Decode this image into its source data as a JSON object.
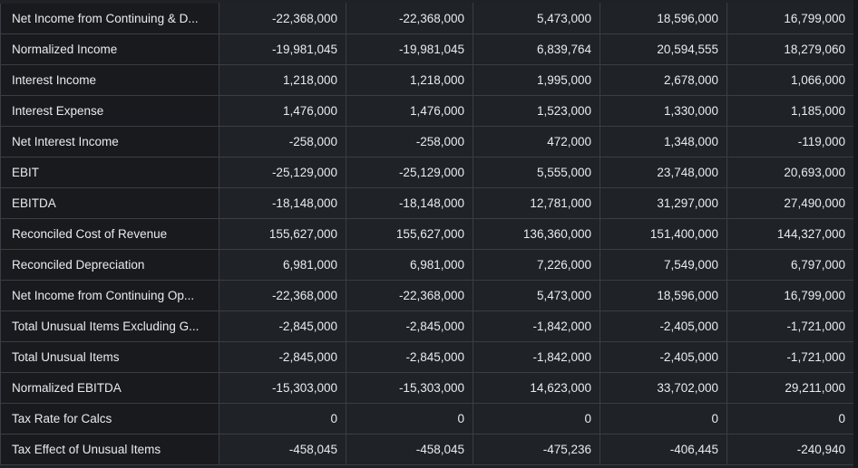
{
  "table": {
    "rows": [
      {
        "label": "Net Income from Continuing & D...",
        "values": [
          "-22,368,000",
          "-22,368,000",
          "5,473,000",
          "18,596,000",
          "16,799,000"
        ]
      },
      {
        "label": "Normalized Income",
        "values": [
          "-19,981,045",
          "-19,981,045",
          "6,839,764",
          "20,594,555",
          "18,279,060"
        ]
      },
      {
        "label": "Interest Income",
        "values": [
          "1,218,000",
          "1,218,000",
          "1,995,000",
          "2,678,000",
          "1,066,000"
        ]
      },
      {
        "label": "Interest Expense",
        "values": [
          "1,476,000",
          "1,476,000",
          "1,523,000",
          "1,330,000",
          "1,185,000"
        ]
      },
      {
        "label": "Net Interest Income",
        "values": [
          "-258,000",
          "-258,000",
          "472,000",
          "1,348,000",
          "-119,000"
        ]
      },
      {
        "label": "EBIT",
        "values": [
          "-25,129,000",
          "-25,129,000",
          "5,555,000",
          "23,748,000",
          "20,693,000"
        ]
      },
      {
        "label": "EBITDA",
        "values": [
          "-18,148,000",
          "-18,148,000",
          "12,781,000",
          "31,297,000",
          "27,490,000"
        ]
      },
      {
        "label": "Reconciled Cost of Revenue",
        "values": [
          "155,627,000",
          "155,627,000",
          "136,360,000",
          "151,400,000",
          "144,327,000"
        ]
      },
      {
        "label": "Reconciled Depreciation",
        "values": [
          "6,981,000",
          "6,981,000",
          "7,226,000",
          "7,549,000",
          "6,797,000"
        ]
      },
      {
        "label": "Net Income from Continuing Op...",
        "values": [
          "-22,368,000",
          "-22,368,000",
          "5,473,000",
          "18,596,000",
          "16,799,000"
        ]
      },
      {
        "label": "Total Unusual Items Excluding G...",
        "values": [
          "-2,845,000",
          "-2,845,000",
          "-1,842,000",
          "-2,405,000",
          "-1,721,000"
        ]
      },
      {
        "label": "Total Unusual Items",
        "values": [
          "-2,845,000",
          "-2,845,000",
          "-1,842,000",
          "-2,405,000",
          "-1,721,000"
        ]
      },
      {
        "label": "Normalized EBITDA",
        "values": [
          "-15,303,000",
          "-15,303,000",
          "14,623,000",
          "33,702,000",
          "29,211,000"
        ]
      },
      {
        "label": "Tax Rate for Calcs",
        "values": [
          "0",
          "0",
          "0",
          "0",
          "0"
        ]
      },
      {
        "label": "Tax Effect of Unusual Items",
        "values": [
          "-458,045",
          "-458,045",
          "-475,236",
          "-406,445",
          "-240,940"
        ]
      }
    ]
  },
  "colors": {
    "background": "#1e2125",
    "label_cell": "#181a1d",
    "value_cell": "#1f2226",
    "border": "#3a3e44",
    "text": "#e9ebee"
  }
}
